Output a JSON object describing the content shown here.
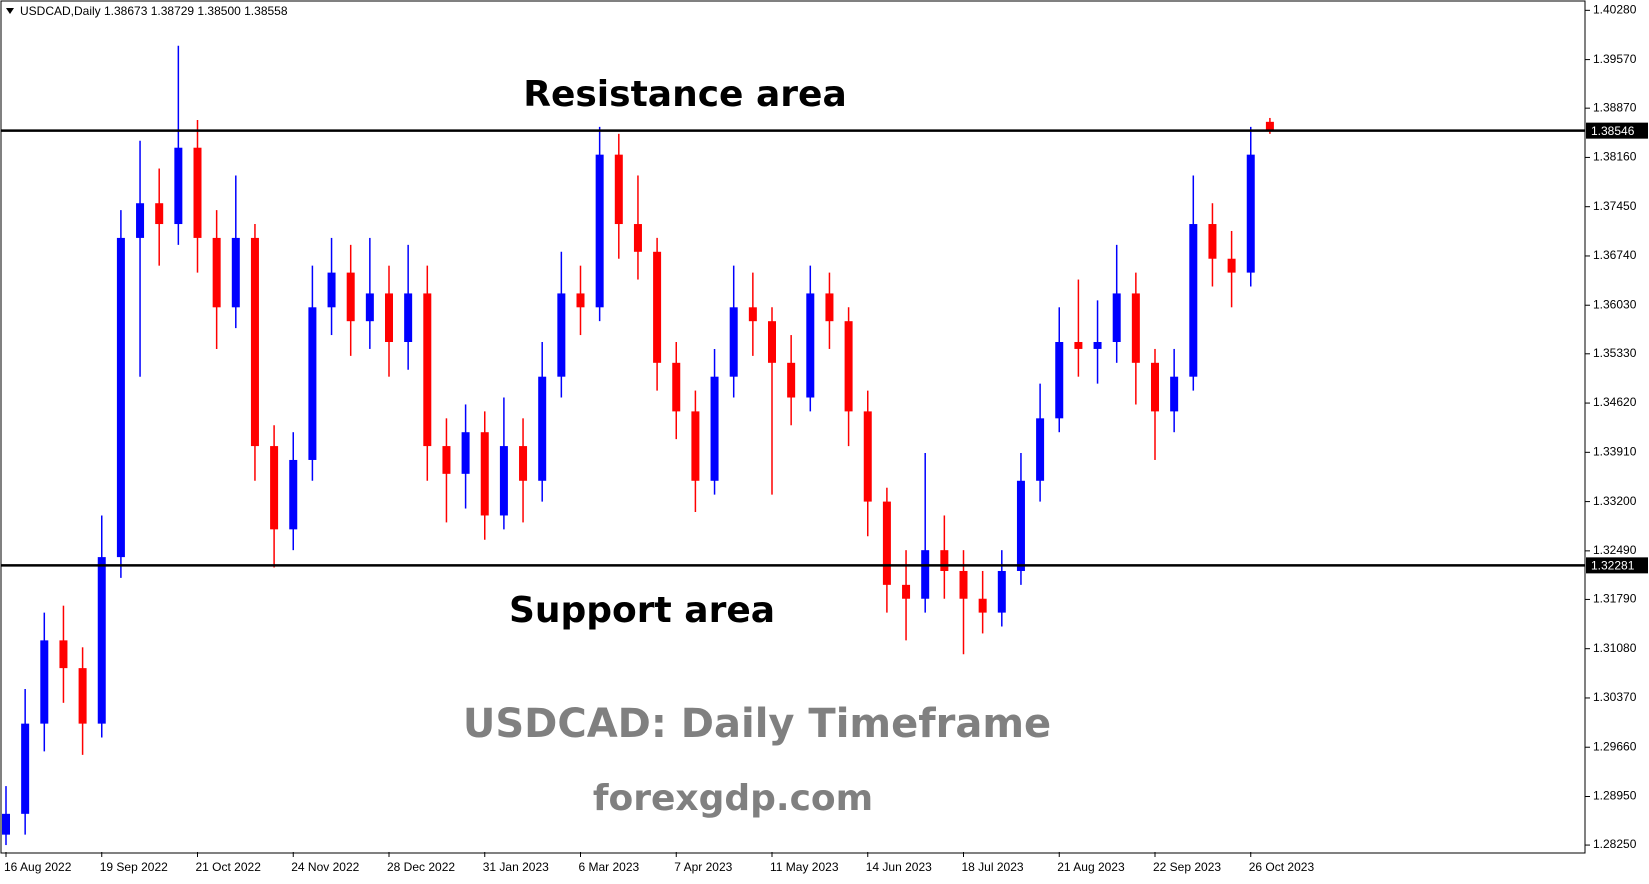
{
  "chart_data": {
    "type": "candlestick",
    "symbol": "USDCAD,Daily",
    "ohlc_label": "1.38673 1.38729 1.38500 1.38558",
    "annotations": [
      "Resistance area",
      "Support area"
    ],
    "title": "USDCAD: Daily Timeframe",
    "subtitle": "forexgdp.com",
    "up_color": "#0000ff",
    "down_color": "#ff0000",
    "categories": [
      "16 Aug 2022",
      null,
      null,
      null,
      null,
      "19 Sep 2022",
      null,
      null,
      null,
      null,
      "21 Oct 2022",
      null,
      null,
      null,
      null,
      "24 Nov 2022",
      null,
      null,
      null,
      null,
      "28 Dec 2022",
      null,
      null,
      null,
      null,
      "31 Jan 2023",
      null,
      null,
      null,
      null,
      "6 Mar 2023",
      null,
      null,
      null,
      null,
      "7 Apr 2023",
      null,
      null,
      null,
      null,
      "11 May 2023",
      null,
      null,
      null,
      null,
      "14 Jun 2023",
      null,
      null,
      null,
      null,
      "18 Jul 2023",
      null,
      null,
      null,
      null,
      "21 Aug 2023",
      null,
      null,
      null,
      null,
      "22 Sep 2023",
      null,
      null,
      null,
      null,
      "26 Oct 2023",
      null
    ],
    "open": [
      1.284,
      1.287,
      1.3,
      1.312,
      1.308,
      1.3,
      1.324,
      1.37,
      1.375,
      1.372,
      1.383,
      1.37,
      1.36,
      1.37,
      1.34,
      1.328,
      1.338,
      1.36,
      1.365,
      1.358,
      1.362,
      1.355,
      1.362,
      1.34,
      1.336,
      1.342,
      1.33,
      1.34,
      1.335,
      1.35,
      1.362,
      1.36,
      1.382,
      1.372,
      1.368,
      1.352,
      1.345,
      1.335,
      1.35,
      1.36,
      1.358,
      1.352,
      1.347,
      1.362,
      1.358,
      1.345,
      1.332,
      1.32,
      1.318,
      1.325,
      1.322,
      1.318,
      1.316,
      1.322,
      1.335,
      1.344,
      1.355,
      1.354,
      1.355,
      1.362,
      1.352,
      1.345,
      1.35,
      1.372,
      1.367,
      1.365,
      1.38673
    ],
    "high": [
      1.291,
      1.305,
      1.316,
      1.317,
      1.311,
      1.33,
      1.374,
      1.384,
      1.38,
      1.3977,
      1.387,
      1.374,
      1.379,
      1.372,
      1.343,
      1.342,
      1.366,
      1.37,
      1.369,
      1.37,
      1.366,
      1.369,
      1.366,
      1.344,
      1.346,
      1.345,
      1.347,
      1.344,
      1.355,
      1.368,
      1.366,
      1.386,
      1.385,
      1.379,
      1.37,
      1.355,
      1.348,
      1.354,
      1.366,
      1.365,
      1.36,
      1.356,
      1.366,
      1.365,
      1.36,
      1.348,
      1.334,
      1.325,
      1.339,
      1.33,
      1.325,
      1.322,
      1.325,
      1.339,
      1.349,
      1.36,
      1.364,
      1.361,
      1.369,
      1.365,
      1.354,
      1.354,
      1.379,
      1.375,
      1.371,
      1.386,
      1.38729
    ],
    "low": [
      1.2825,
      1.284,
      1.296,
      1.303,
      1.2955,
      1.298,
      1.321,
      1.35,
      1.366,
      1.369,
      1.365,
      1.354,
      1.357,
      1.335,
      1.3225,
      1.325,
      1.335,
      1.356,
      1.353,
      1.354,
      1.35,
      1.351,
      1.335,
      1.329,
      1.331,
      1.3265,
      1.328,
      1.329,
      1.332,
      1.347,
      1.356,
      1.358,
      1.367,
      1.364,
      1.348,
      1.341,
      1.3305,
      1.333,
      1.347,
      1.353,
      1.333,
      1.343,
      1.345,
      1.354,
      1.34,
      1.327,
      1.316,
      1.312,
      1.316,
      1.318,
      1.31,
      1.313,
      1.314,
      1.32,
      1.332,
      1.342,
      1.35,
      1.349,
      1.352,
      1.346,
      1.338,
      1.342,
      1.348,
      1.363,
      1.36,
      1.363,
      1.385
    ],
    "close": [
      1.287,
      1.3,
      1.312,
      1.308,
      1.3,
      1.324,
      1.37,
      1.375,
      1.372,
      1.383,
      1.37,
      1.36,
      1.37,
      1.34,
      1.328,
      1.338,
      1.36,
      1.365,
      1.358,
      1.362,
      1.355,
      1.362,
      1.34,
      1.336,
      1.342,
      1.33,
      1.34,
      1.335,
      1.35,
      1.362,
      1.36,
      1.382,
      1.372,
      1.368,
      1.352,
      1.345,
      1.335,
      1.35,
      1.36,
      1.358,
      1.352,
      1.347,
      1.362,
      1.358,
      1.345,
      1.332,
      1.32,
      1.318,
      1.325,
      1.322,
      1.318,
      1.316,
      1.322,
      1.335,
      1.344,
      1.355,
      1.354,
      1.355,
      1.362,
      1.352,
      1.345,
      1.35,
      1.372,
      1.367,
      1.365,
      1.382,
      1.38558
    ],
    "ylim": [
      1.2815,
      1.404
    ],
    "yticks": [
      {
        "value": 1.4028,
        "label": "1.40280"
      },
      {
        "value": 1.3957,
        "label": "1.39570"
      },
      {
        "value": 1.3887,
        "label": "1.38870"
      },
      {
        "value": 1.3816,
        "label": "1.38160"
      },
      {
        "value": 1.3745,
        "label": "1.37450"
      },
      {
        "value": 1.3674,
        "label": "1.36740"
      },
      {
        "value": 1.3603,
        "label": "1.36030"
      },
      {
        "value": 1.3533,
        "label": "1.35330"
      },
      {
        "value": 1.3462,
        "label": "1.34620"
      },
      {
        "value": 1.3391,
        "label": "1.33910"
      },
      {
        "value": 1.332,
        "label": "1.33200"
      },
      {
        "value": 1.3249,
        "label": "1.32490"
      },
      {
        "value": 1.3179,
        "label": "1.31790"
      },
      {
        "value": 1.3108,
        "label": "1.31080"
      },
      {
        "value": 1.3037,
        "label": "1.30370"
      },
      {
        "value": 1.2966,
        "label": "1.29660"
      },
      {
        "value": 1.2895,
        "label": "1.28950"
      },
      {
        "value": 1.2825,
        "label": "1.28250"
      }
    ],
    "levels": [
      {
        "value": 1.38546,
        "label": "1.38546"
      },
      {
        "value": 1.32281,
        "label": "1.32281"
      }
    ]
  }
}
